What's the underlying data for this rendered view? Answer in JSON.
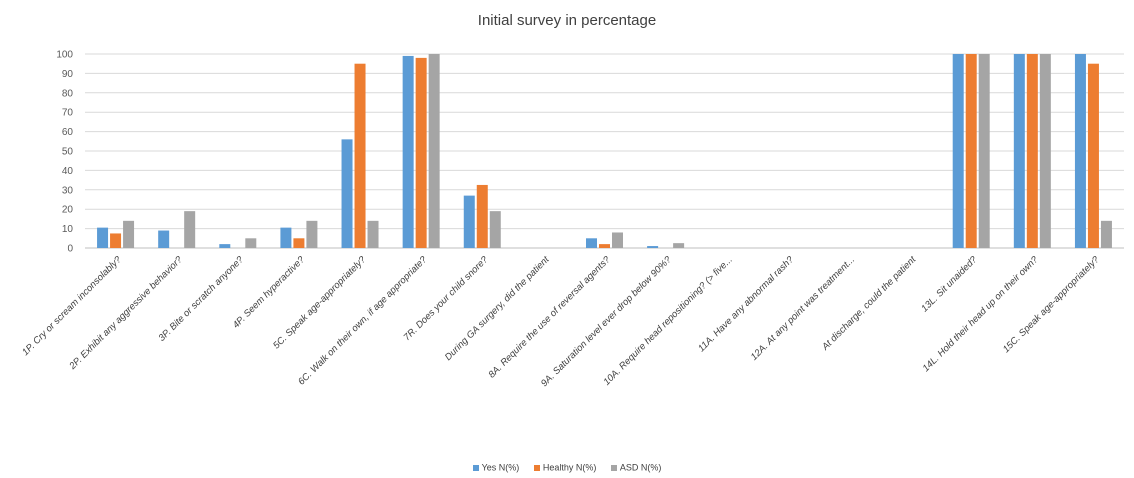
{
  "chart_data": {
    "type": "bar",
    "title": "Initial survey in percentage",
    "xlabel": "",
    "ylabel": "",
    "ylim": [
      0,
      100
    ],
    "yticks": [
      0,
      10,
      20,
      30,
      40,
      50,
      60,
      70,
      80,
      90,
      100
    ],
    "grid": true,
    "legend_position": "bottom",
    "categories": [
      "1P. Cry or scream inconsolably?",
      "2P. Exhibit any aggressive behavior?",
      "3P. Bite or scratch anyone?",
      "4P. Seem hyperactive?",
      "5C. Speak age-appropriately?",
      "6C. Walk on their own, if age appropriate?",
      "7R. Does your child snore?",
      "During GA surgery, did the patient",
      "8A. Require the use of reversal agents?",
      "9A. Saturation level ever drop below 90%?",
      "10A. Require head repositioning? (> five...",
      "11A. Have any abnormal rash?",
      "12A. At any point was treatment...",
      "At discharge, could the patient",
      "13L. Sit unaided?",
      "14L. Hold their head up on their own?",
      "15C. Speak age-appropriately?"
    ],
    "series": [
      {
        "name": "Yes N(%)",
        "color": "#5B9BD5",
        "values": [
          10.5,
          9,
          2,
          10.5,
          56,
          99,
          27,
          0,
          5,
          1,
          0,
          0,
          0,
          0,
          100,
          100,
          100
        ]
      },
      {
        "name": "Healthy N(%)",
        "color": "#ED7D31",
        "values": [
          7.5,
          0,
          0,
          5,
          95,
          98,
          32.5,
          0,
          2,
          0,
          0,
          0,
          0,
          0,
          100,
          100,
          95
        ]
      },
      {
        "name": "ASD N(%)",
        "color": "#A5A5A5",
        "values": [
          14,
          19,
          5,
          14,
          14,
          100,
          19,
          0,
          8,
          2.5,
          0,
          0,
          0,
          0,
          100,
          100,
          14
        ]
      }
    ]
  }
}
